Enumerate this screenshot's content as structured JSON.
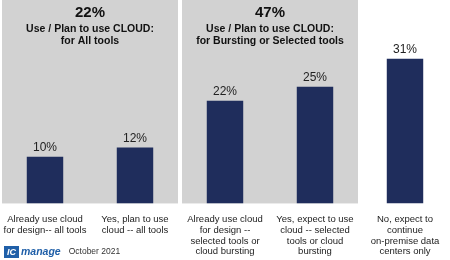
{
  "chart_data": {
    "type": "bar",
    "categories": [
      "Already use cloud for design-- all tools",
      "Yes, plan to use cloud -- all tools",
      "Already use cloud for design -- selected tools or cloud bursting",
      "Yes, expect to use cloud -- selected tools or cloud bursting",
      "No, expect to continue on-premise data centers only"
    ],
    "values": [
      10,
      12,
      22,
      25,
      31
    ],
    "value_labels": [
      "10%",
      "12%",
      "22%",
      "25%",
      "31%"
    ],
    "color": "#1f2d5c",
    "ylim": [
      0,
      35
    ],
    "tick_labels": "x",
    "grid": false,
    "data_labels": true,
    "groups": [
      {
        "label": "22%",
        "title": [
          "Use / Plan to use CLOUD:",
          "for All tools"
        ],
        "categories": [
          "Already use cloud for design-- all tools",
          "Yes, plan to use cloud -- all tools"
        ]
      },
      {
        "label": "47%",
        "title": [
          "Use / Plan to use CLOUD:",
          "for Bursting or Selected tools"
        ],
        "categories": [
          "Already use cloud for design -- selected tools or cloud bursting",
          "Yes, expect to use cloud -- selected tools or cloud bursting"
        ]
      }
    ],
    "footer": {
      "logo_mark": "IC",
      "logo_text": "manage",
      "date": "October 2021"
    }
  }
}
